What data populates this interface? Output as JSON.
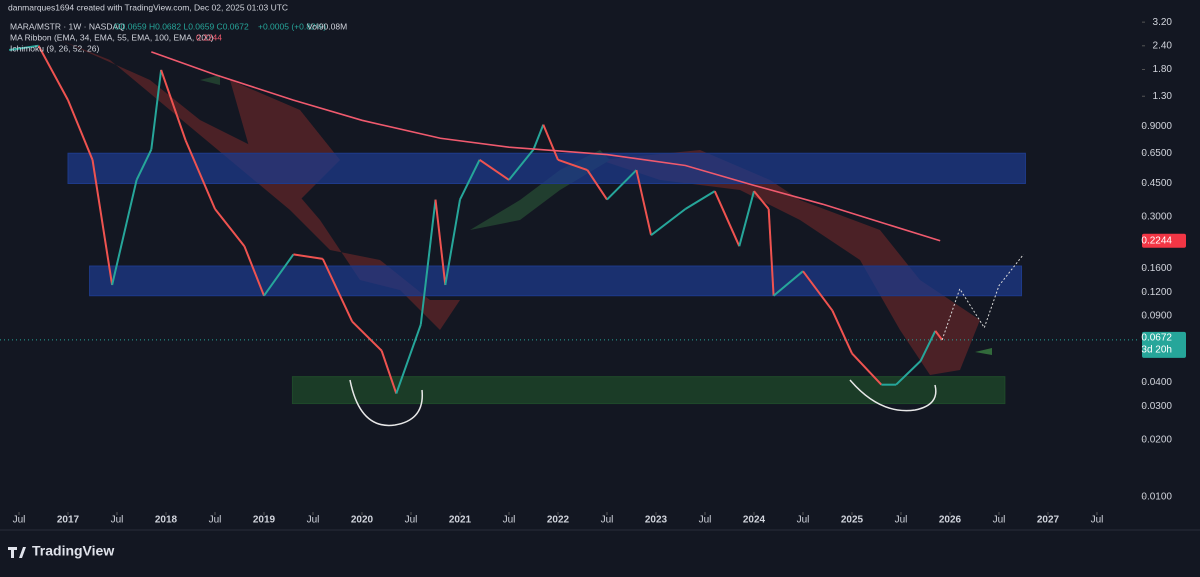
{
  "header": {
    "credit": "danmarques1694 created with TradingView.com, Dec 02, 2025 01:03 UTC",
    "symbol": "MARA/MSTR · 1W · NASDAQ",
    "ohlc": "O0.0659 H0.0682 L0.0659 C0.0672",
    "change": "+0.0005 (+0.82%)",
    "volume": "Vol90.08M",
    "ichimoku": "Ichimoku (9, 26, 52, 26)",
    "countdown": "3d 20h"
  },
  "footer": {
    "brand": "TradingView"
  },
  "chart_data": {
    "type": "line",
    "log_scale": true,
    "grid": false,
    "xlim": [
      2016.306,
      2027.939
    ],
    "ylim": [
      0.0085,
      3.49
    ],
    "xticks": [
      {
        "value": 2016.5,
        "label": "Jul"
      },
      {
        "value": 2017,
        "label": "2017"
      },
      {
        "value": 2017.5,
        "label": "Jul"
      },
      {
        "value": 2018,
        "label": "2018"
      },
      {
        "value": 2018.5,
        "label": "Jul"
      },
      {
        "value": 2019,
        "label": "2019"
      },
      {
        "value": 2019.5,
        "label": "Jul"
      },
      {
        "value": 2020,
        "label": "2020"
      },
      {
        "value": 2020.5,
        "label": "Jul"
      },
      {
        "value": 2021,
        "label": "2021"
      },
      {
        "value": 2021.5,
        "label": "Jul"
      },
      {
        "value": 2022,
        "label": "2022"
      },
      {
        "value": 2022.5,
        "label": "Jul"
      },
      {
        "value": 2023,
        "label": "2023"
      },
      {
        "value": 2023.5,
        "label": "Jul"
      },
      {
        "value": 2024,
        "label": "2024"
      },
      {
        "value": 2024.5,
        "label": "Jul"
      },
      {
        "value": 2025,
        "label": "2025"
      },
      {
        "value": 2025.5,
        "label": "Jul"
      },
      {
        "value": 2026,
        "label": "2026"
      },
      {
        "value": 2026.5,
        "label": "Jul"
      },
      {
        "value": 2027,
        "label": "2027"
      },
      {
        "value": 2027.5,
        "label": "Jul"
      }
    ],
    "yticks": [
      {
        "value": 3.2,
        "label": "3.20"
      },
      {
        "value": 2.4,
        "label": "2.40"
      },
      {
        "value": 1.8,
        "label": "1.80"
      },
      {
        "value": 1.3,
        "label": "1.30"
      },
      {
        "value": 0.9,
        "label": "0.9000"
      },
      {
        "value": 0.65,
        "label": "0.6500"
      },
      {
        "value": 0.45,
        "label": "0.4500"
      },
      {
        "value": 0.3,
        "label": "0.3000"
      },
      {
        "value": 0.16,
        "label": "0.1600"
      },
      {
        "value": 0.12,
        "label": "0.1200"
      },
      {
        "value": 0.09,
        "label": "0.0900"
      },
      {
        "value": 0.04,
        "label": "0.0400"
      },
      {
        "value": 0.03,
        "label": "0.0300"
      },
      {
        "value": 0.02,
        "label": "0.0200"
      },
      {
        "value": 0.01,
        "label": "0.0100"
      }
    ],
    "zones": [
      {
        "from": 0.45,
        "to": 0.65,
        "x0": 2017.0,
        "x1": 2026.77,
        "color": "#1e3a8a"
      },
      {
        "from": 0.115,
        "to": 0.165,
        "x0": 2017.22,
        "x1": 2026.73,
        "color": "#1e3a8a"
      },
      {
        "from": 0.031,
        "to": 0.043,
        "x0": 2019.29,
        "x1": 2026.56,
        "color": "#1f4a2a"
      }
    ],
    "series": [
      {
        "name": "MARA/MSTR · 1W · NASDAQ",
        "color": "#26a69a",
        "down_color": "#ef5350",
        "x": [
          2016.4,
          2016.7,
          2017.0,
          2017.25,
          2017.45,
          2017.7,
          2017.85,
          2017.95,
          2018.2,
          2018.5,
          2018.8,
          2019.0,
          2019.3,
          2019.6,
          2019.9,
          2020.2,
          2020.35,
          2020.6,
          2020.75,
          2020.85,
          2021.0,
          2021.2,
          2021.5,
          2021.75,
          2021.85,
          2022.0,
          2022.3,
          2022.5,
          2022.8,
          2022.95,
          2023.3,
          2023.6,
          2023.85,
          2024.0,
          2024.15,
          2024.2,
          2024.5,
          2024.8,
          2025.0,
          2025.3,
          2025.45,
          2025.7,
          2025.85,
          2025.92
        ],
        "values": [
          2.28,
          2.4,
          1.24,
          0.6,
          0.131,
          0.47,
          0.68,
          1.79,
          0.76,
          0.33,
          0.21,
          0.115,
          0.19,
          0.18,
          0.084,
          0.059,
          0.035,
          0.081,
          0.37,
          0.131,
          0.37,
          0.6,
          0.47,
          0.68,
          0.92,
          0.6,
          0.53,
          0.37,
          0.53,
          0.24,
          0.33,
          0.41,
          0.21,
          0.41,
          0.33,
          0.115,
          0.155,
          0.096,
          0.057,
          0.039,
          0.039,
          0.052,
          0.075,
          0.0672
        ]
      },
      {
        "name": "MA Ribbon (EMA, 34, EMA, 55, EMA, 100, EMA, 200)",
        "color": "#f05a6e",
        "x": [
          2017.85,
          2018.5,
          2019.3,
          2020.0,
          2020.8,
          2021.5,
          2022.5,
          2023.3,
          2024.0,
          2024.7,
          2025.3,
          2025.9
        ],
        "values": [
          2.23,
          1.69,
          1.24,
          0.97,
          0.78,
          0.7,
          0.64,
          0.56,
          0.44,
          0.35,
          0.28,
          0.2244
        ]
      },
      {
        "color": "#d8d8d8",
        "x": [
          2025.92,
          2026.1,
          2026.35,
          2026.5,
          2026.75
        ],
        "values": [
          0.0672,
          0.125,
          0.078,
          0.13,
          0.19
        ]
      }
    ]
  }
}
